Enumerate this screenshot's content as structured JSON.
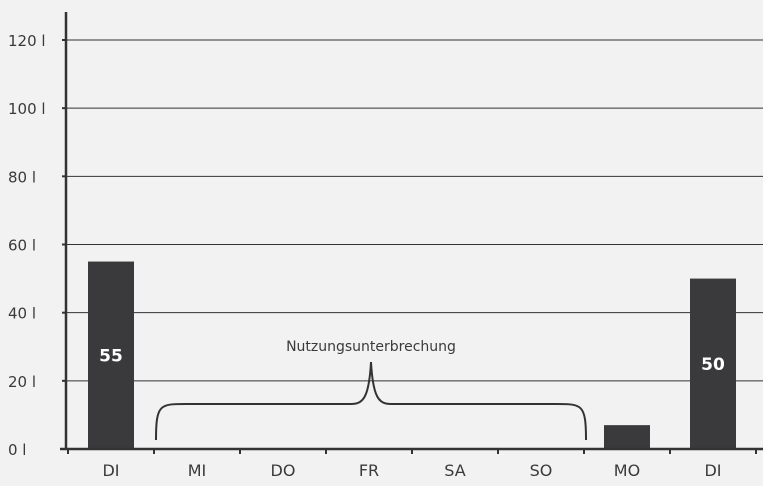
{
  "chart_data": {
    "type": "bar",
    "categories": [
      "DI",
      "MI",
      "DO",
      "FR",
      "SA",
      "SO",
      "MO",
      "DI"
    ],
    "values": [
      55,
      0,
      0,
      0,
      0,
      0,
      7,
      50
    ],
    "data_labels": [
      "55",
      "",
      "",
      "",
      "",
      "",
      "",
      "50"
    ],
    "ylim": [
      0,
      120
    ],
    "yticks": [
      0,
      20,
      40,
      60,
      80,
      100,
      120
    ],
    "ytick_labels": [
      "0 l",
      "20 l",
      "40 l",
      "60 l",
      "80 l",
      "100 l",
      "120 l"
    ],
    "grid": true,
    "annotation": {
      "text": "Nutzungsunterbrechung",
      "from_category_index": 1,
      "to_category_index": 5
    },
    "colors": {
      "bar": "#3a3a3d",
      "axis": "#333333",
      "grid": "#333333",
      "background": "#f2f2f2"
    }
  }
}
